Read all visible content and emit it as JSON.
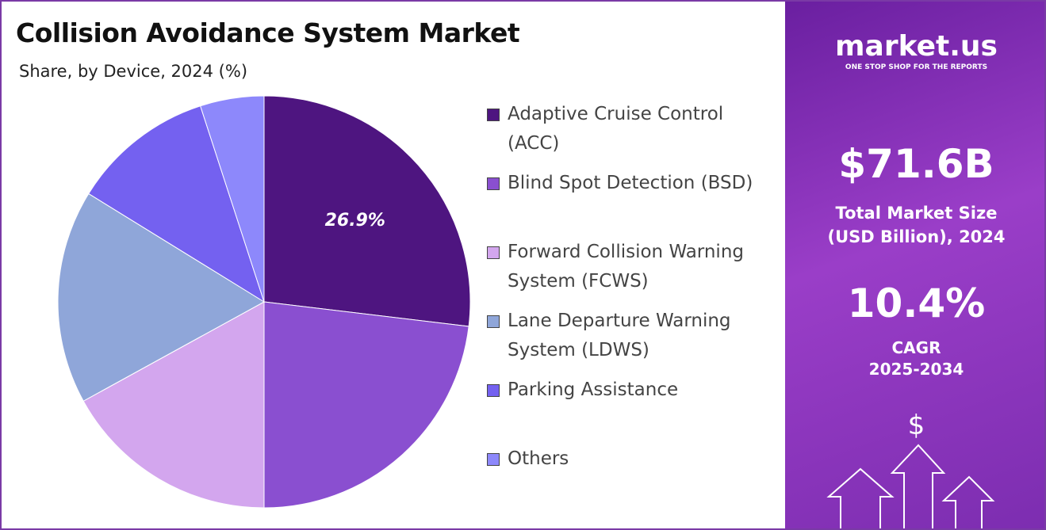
{
  "chart_data": {
    "type": "pie",
    "title": "Collision Avoidance System Market",
    "subtitle": "Share, by Device, 2024 (%)",
    "categories": [
      "Adaptive Cruise Control (ACC)",
      "Blind Spot Detection (BSD)",
      "Forward Collision Warning System (FCWS)",
      "Lane Departure Warning System (LDWS)",
      "Parking Assistance",
      "Others"
    ],
    "values": [
      26.9,
      23.1,
      17.0,
      16.8,
      11.2,
      5.0
    ],
    "value_labels": [
      "26.9%",
      null,
      null,
      null,
      null,
      null
    ],
    "colors": [
      "#4e1580",
      "#8a4fd0",
      "#d3a6ee",
      "#8fa6d9",
      "#7461f0",
      "#8d88fb"
    ],
    "legend": "right"
  },
  "panel": {
    "brand": "market.us",
    "tagline": "ONE STOP SHOP FOR THE REPORTS",
    "market_size": "$71.6B",
    "market_size_label": "Total Market Size (USD Billion), 2024",
    "cagr": "10.4%",
    "cagr_label": "CAGR",
    "cagr_period": "2025-2034",
    "icon": "$"
  }
}
